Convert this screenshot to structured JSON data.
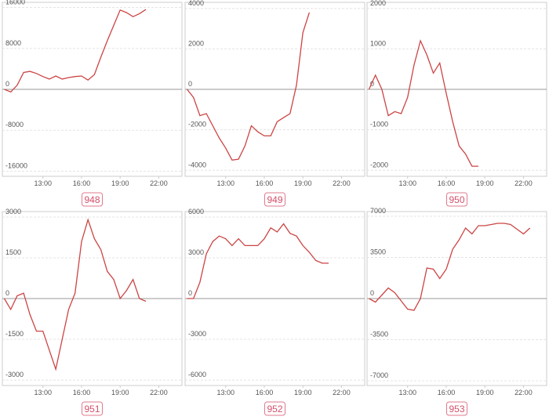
{
  "chart_data": [
    {
      "type": "line",
      "title": "948",
      "color": "#cc4444",
      "grid": true,
      "x": [
        10,
        10.5,
        11,
        11.5,
        12,
        12.5,
        13,
        13.5,
        14,
        14.5,
        15,
        15.5,
        16,
        16.5,
        17,
        17.5,
        18,
        18.5,
        19,
        19.5,
        20,
        20.5,
        21
      ],
      "values": [
        0,
        -500,
        800,
        3300,
        3500,
        3100,
        2500,
        2000,
        2600,
        2000,
        2300,
        2500,
        2600,
        1800,
        2900,
        6300,
        9500,
        12500,
        15500,
        15000,
        14200,
        14800,
        15600
      ],
      "xlim": [
        9.85,
        23.8
      ],
      "xticks": [
        {
          "value": 13,
          "label": "13:00"
        },
        {
          "value": 16,
          "label": "16:00"
        },
        {
          "value": 19,
          "label": "19:00"
        },
        {
          "value": 22,
          "label": "22:00"
        }
      ],
      "ylim": [
        -17000,
        17000
      ],
      "yticks": [
        16000,
        8000,
        0,
        -8000,
        -16000
      ]
    },
    {
      "type": "line",
      "title": "949",
      "color": "#cc4444",
      "grid": true,
      "x": [
        10,
        10.5,
        11,
        11.5,
        12,
        12.5,
        13,
        13.5,
        14,
        14.5,
        15,
        15.5,
        16,
        16.5,
        17,
        17.5,
        18,
        18.5,
        19,
        19.5
      ],
      "values": [
        0,
        -400,
        -1300,
        -1200,
        -1800,
        -2400,
        -2900,
        -3500,
        -3450,
        -2800,
        -1800,
        -2100,
        -2300,
        -2300,
        -1600,
        -1400,
        -1200,
        200,
        2800,
        3800
      ],
      "xlim": [
        9.85,
        23.8
      ],
      "xticks": [
        {
          "value": 13,
          "label": "13:00"
        },
        {
          "value": 16,
          "label": "16:00"
        },
        {
          "value": 19,
          "label": "19:00"
        },
        {
          "value": 22,
          "label": "22:00"
        }
      ],
      "ylim": [
        -4300,
        4300
      ],
      "yticks": [
        4000,
        2000,
        0,
        -2000,
        -4000
      ]
    },
    {
      "type": "line",
      "title": "950",
      "color": "#cc4444",
      "grid": true,
      "x": [
        10,
        10.5,
        11,
        11.5,
        12,
        12.5,
        13,
        13.5,
        14,
        14.5,
        15,
        15.5,
        16,
        16.5,
        17,
        17.5,
        18,
        18.5
      ],
      "values": [
        0,
        350,
        0,
        -650,
        -550,
        -600,
        -200,
        600,
        1200,
        850,
        400,
        650,
        -100,
        -800,
        -1400,
        -1600,
        -1900,
        -1900
      ],
      "xlim": [
        9.85,
        23.8
      ],
      "xticks": [
        {
          "value": 13,
          "label": "13:00"
        },
        {
          "value": 16,
          "label": "16:00"
        },
        {
          "value": 19,
          "label": "19:00"
        },
        {
          "value": 22,
          "label": "22:00"
        }
      ],
      "ylim": [
        -2150,
        2150
      ],
      "yticks": [
        2000,
        1000,
        0,
        -1000,
        -2000
      ]
    },
    {
      "type": "line",
      "title": "951",
      "color": "#cc4444",
      "grid": true,
      "x": [
        10,
        10.5,
        11,
        11.5,
        12,
        12.5,
        13,
        13.5,
        14,
        14.5,
        15,
        15.5,
        16,
        16.5,
        17,
        17.5,
        18,
        18.5,
        19,
        19.5,
        20,
        20.5,
        21
      ],
      "values": [
        0,
        -400,
        100,
        200,
        -600,
        -1200,
        -1200,
        -1900,
        -2600,
        -1500,
        -400,
        200,
        2100,
        2900,
        2200,
        1800,
        1000,
        700,
        0,
        300,
        700,
        0,
        -100
      ],
      "xlim": [
        9.85,
        23.8
      ],
      "xticks": [
        {
          "value": 13,
          "label": "13:00"
        },
        {
          "value": 16,
          "label": "16:00"
        },
        {
          "value": 19,
          "label": "19:00"
        },
        {
          "value": 22,
          "label": "22:00"
        }
      ],
      "ylim": [
        -3200,
        3200
      ],
      "yticks": [
        3000,
        1500,
        0,
        -1500,
        -3000
      ]
    },
    {
      "type": "line",
      "title": "952",
      "color": "#cc4444",
      "grid": true,
      "x": [
        10,
        10.5,
        11,
        11.5,
        12,
        12.5,
        13,
        13.5,
        14,
        14.5,
        15,
        15.5,
        16,
        16.5,
        17,
        17.5,
        18,
        18.5,
        19,
        19.5,
        20,
        20.5,
        21
      ],
      "values": [
        0,
        0,
        1200,
        3300,
        4200,
        4600,
        4400,
        3900,
        4400,
        3900,
        3900,
        3900,
        4400,
        5200,
        4900,
        5500,
        4800,
        4600,
        3900,
        3400,
        2800,
        2600,
        2600
      ],
      "xlim": [
        9.85,
        23.8
      ],
      "xticks": [
        {
          "value": 13,
          "label": "13:00"
        },
        {
          "value": 16,
          "label": "16:00"
        },
        {
          "value": 19,
          "label": "19:00"
        },
        {
          "value": 22,
          "label": "22:00"
        }
      ],
      "ylim": [
        -6400,
        6400
      ],
      "yticks": [
        6000,
        3000,
        0,
        -3000,
        -6000
      ]
    },
    {
      "type": "line",
      "title": "953",
      "color": "#cc4444",
      "grid": true,
      "x": [
        10,
        10.5,
        11,
        11.5,
        12,
        12.5,
        13,
        13.5,
        14,
        14.5,
        15,
        15.5,
        16,
        16.5,
        17,
        17.5,
        18,
        18.5,
        19,
        19.5,
        20,
        20.5,
        21,
        21.5,
        22,
        22.5
      ],
      "values": [
        0,
        -300,
        300,
        900,
        500,
        -200,
        -900,
        -1000,
        0,
        2600,
        2500,
        1700,
        2500,
        4200,
        5000,
        6000,
        5500,
        6200,
        6200,
        6300,
        6400,
        6400,
        6300,
        5900,
        5500,
        6000
      ],
      "xlim": [
        9.85,
        23.8
      ],
      "xticks": [
        {
          "value": 13,
          "label": "13:00"
        },
        {
          "value": 16,
          "label": "16:00"
        },
        {
          "value": 19,
          "label": "19:00"
        },
        {
          "value": 22,
          "label": "22:00"
        }
      ],
      "ylim": [
        -7400,
        7400
      ],
      "yticks": [
        7000,
        3500,
        0,
        -3500,
        -7000
      ]
    }
  ]
}
